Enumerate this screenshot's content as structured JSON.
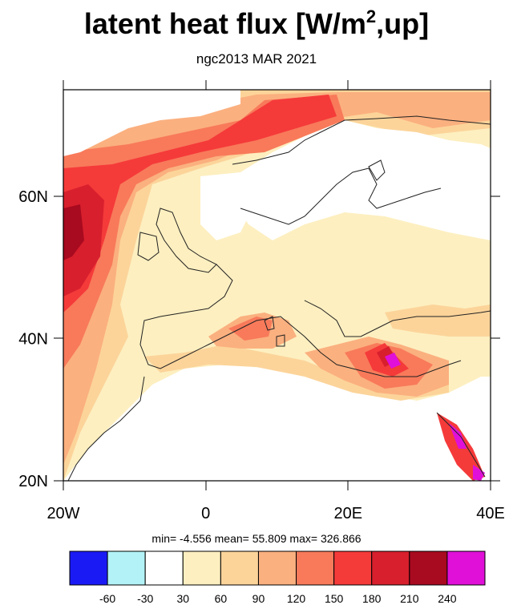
{
  "title": {
    "main": "latent heat flux [W/m",
    "sup": "2",
    "end": ",up]"
  },
  "subtitle": "ngc2013 MAR 2021",
  "stats": "min=  -4.556  mean=  55.809  max= 326.866",
  "chart_data": {
    "type": "heatmap",
    "title": "latent heat flux [W/m2,up]",
    "subtitle": "ngc2013 MAR 2021",
    "x_axis": {
      "range": [
        -20,
        40
      ],
      "ticks": [
        -20,
        0,
        20,
        40
      ],
      "tick_labels": [
        "20W",
        "0",
        "20E",
        "40E"
      ]
    },
    "y_axis": {
      "range": [
        20,
        75
      ],
      "ticks": [
        20,
        40,
        60
      ],
      "tick_labels": [
        "20N",
        "40N",
        "60N"
      ]
    },
    "stats": {
      "min": -4.556,
      "mean": 55.809,
      "max": 326.866
    },
    "colorbar": {
      "levels": [
        "-60",
        "-30",
        "30",
        "60",
        "90",
        "120",
        "150",
        "180",
        "210",
        "240"
      ],
      "colors": [
        "#1a1af5",
        "#b3f3f8",
        "#ffffff",
        "#fdefc0",
        "#fcd49a",
        "#fbb07f",
        "#f87a5a",
        "#f53a3a",
        "#d81f2d",
        "#a80a1f",
        "#e010d8"
      ]
    }
  }
}
